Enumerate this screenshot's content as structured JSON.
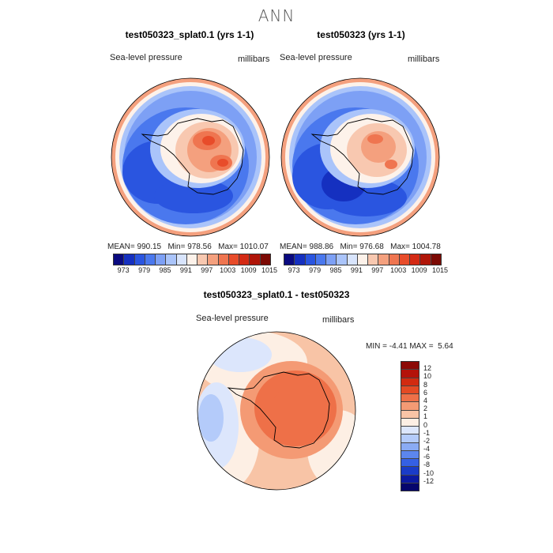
{
  "figure_title": "ANN",
  "panels": [
    {
      "title": "test050323_splat0.1 (yrs 1-1)",
      "variable": "Sea-level pressure",
      "units": "millibars",
      "stats": {
        "mean": "990.15",
        "min": "978.56",
        "max": "1010.07"
      }
    },
    {
      "title": "test050323 (yrs 1-1)",
      "variable": "Sea-level pressure",
      "units": "millibars",
      "stats": {
        "mean": "988.86",
        "min": "976.68",
        "max": "1004.78"
      }
    },
    {
      "title": "test050323_splat0.1 - test050323",
      "variable": "Sea-level pressure",
      "units": "millibars",
      "stats": {
        "min": "-4.41",
        "max": "5.64"
      }
    }
  ],
  "labels": {
    "mean": "MEAN=",
    "min": "Min=",
    "max": "Max=",
    "min_eq": "MIN =",
    "max_eq": "MAX ="
  },
  "colorbar_abs": {
    "ticks": [
      "973",
      "979",
      "985",
      "991",
      "997",
      "1003",
      "1009",
      "1015"
    ],
    "colors": [
      "#0a0a80",
      "#1530c0",
      "#2a55e0",
      "#4a78ee",
      "#7da0f5",
      "#aac4fa",
      "#d8e4fc",
      "#fdf2ea",
      "#f8c8b0",
      "#f4a07e",
      "#ef7550",
      "#e84c2a",
      "#d42a14",
      "#b01508",
      "#7c0a04"
    ]
  },
  "colorbar_diff": {
    "ticks": [
      "12",
      "10",
      "8",
      "6",
      "4",
      "2",
      "1",
      "0",
      "-1",
      "-2",
      "-4",
      "-6",
      "-8",
      "-10",
      "-12"
    ],
    "colors": [
      "#8c0a06",
      "#b4120a",
      "#d22a10",
      "#e44a24",
      "#ee7048",
      "#f49a74",
      "#f8c4a6",
      "#fdefe4",
      "#dce6fc",
      "#b4cbfa",
      "#8aabf4",
      "#5c86ee",
      "#3560e4",
      "#1a3cc8",
      "#0c1aa0",
      "#06066c"
    ]
  },
  "chart_data": {
    "type": "heatmap",
    "map_projection": "south polar stereographic",
    "fields": [
      {
        "panel": "test050323_splat0.1 (yrs 1-1)",
        "mean": 990.15,
        "min": 978.56,
        "max": 1010.07
      },
      {
        "panel": "test050323 (yrs 1-1)",
        "mean": 988.86,
        "min": 976.68,
        "max": 1004.78
      },
      {
        "panel": "test050323_splat0.1 - test050323",
        "min": -4.41,
        "max": 5.64
      }
    ],
    "contour_levels_abs": [
      973,
      979,
      985,
      991,
      997,
      1003,
      1009,
      1015
    ],
    "contour_levels_diff": [
      12,
      10,
      8,
      6,
      4,
      2,
      1,
      0,
      -1,
      -2,
      -4,
      -6,
      -8,
      -10,
      -12
    ]
  }
}
